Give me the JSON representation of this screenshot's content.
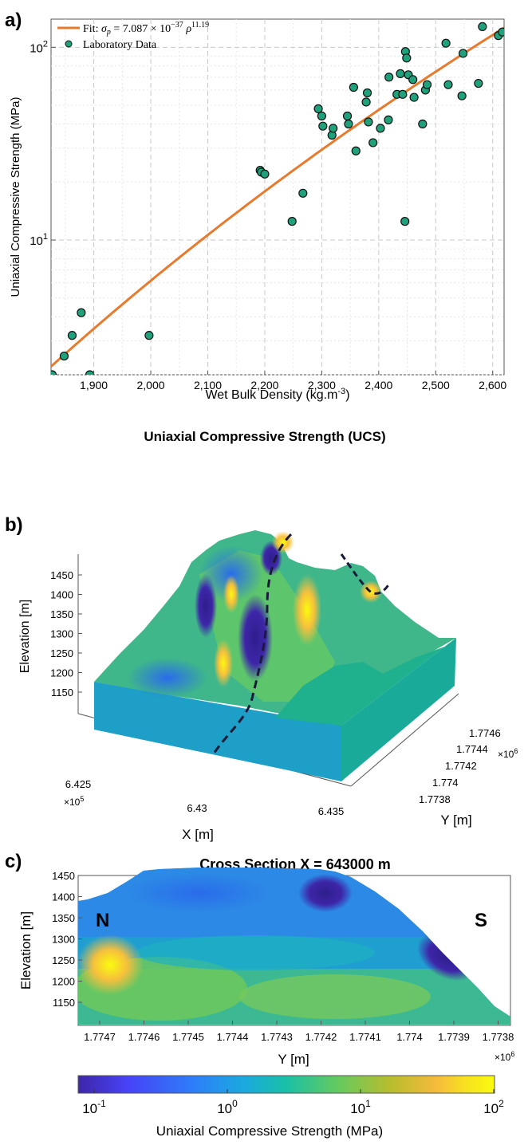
{
  "panel_labels": {
    "a": "a)",
    "b": "b)",
    "c": "c)"
  },
  "chart_data": [
    {
      "type": "scatter",
      "panel": "a",
      "xlabel_main": "Wet Bulk Density (kg.m",
      "xlabel_exp": "-3",
      "xlabel_close": ")",
      "ylabel": "Uniaxial Compressive Strength (MPa)",
      "xlim": [
        1825,
        2620
      ],
      "ylim": [
        2.0,
        140
      ],
      "yscale": "log",
      "grid": true,
      "legend_placement": "top-left",
      "xticks": [
        1900,
        2000,
        2100,
        2200,
        2300,
        2400,
        2500,
        2600
      ],
      "xtick_labels": [
        "1,900",
        "2,000",
        "2,100",
        "2,200",
        "2,300",
        "2,400",
        "2,500",
        "2,600"
      ],
      "yticks": [
        {
          "value": 10,
          "base": "10",
          "exp": "1"
        },
        {
          "value": 100,
          "base": "10",
          "exp": "2"
        }
      ],
      "fit": {
        "legend_prefix": "Fit:",
        "legend_sigma": "σ",
        "legend_sub": "p",
        "legend_eq": "= 7.087 × 10",
        "legend_exp1": "−37",
        "legend_rho": "ρ",
        "legend_exp2": "11.19",
        "coefficient": 7.087e-37,
        "exponent": 11.19,
        "color": "#E87A2E"
      },
      "series": [
        {
          "name": "Laboratory Data",
          "color": "#1FA27C",
          "points": [
            [
              1827,
              2.0
            ],
            [
              1848,
              2.5
            ],
            [
              1862,
              3.2
            ],
            [
              1878,
              4.2
            ],
            [
              1893,
              2.0
            ],
            [
              1997,
              3.2
            ],
            [
              2192,
              23
            ],
            [
              2194,
              22.5
            ],
            [
              2200,
              22
            ],
            [
              2248,
              12.5
            ],
            [
              2267,
              17.5
            ],
            [
              2294,
              48
            ],
            [
              2300,
              44
            ],
            [
              2302,
              39
            ],
            [
              2318,
              35
            ],
            [
              2320,
              38
            ],
            [
              2345,
              44
            ],
            [
              2347,
              40
            ],
            [
              2356,
              62
            ],
            [
              2360,
              29
            ],
            [
              2378,
              52
            ],
            [
              2380,
              58
            ],
            [
              2382,
              41
            ],
            [
              2390,
              32
            ],
            [
              2403,
              38
            ],
            [
              2417,
              42
            ],
            [
              2418,
              70
            ],
            [
              2432,
              57
            ],
            [
              2438,
              73
            ],
            [
              2442,
              57
            ],
            [
              2446,
              12.5
            ],
            [
              2447,
              95
            ],
            [
              2449,
              88
            ],
            [
              2452,
              72
            ],
            [
              2460,
              68
            ],
            [
              2462,
              55
            ],
            [
              2477,
              40
            ],
            [
              2482,
              60
            ],
            [
              2485,
              64
            ],
            [
              2518,
              105
            ],
            [
              2522,
              64
            ],
            [
              2546,
              56
            ],
            [
              2548,
              93
            ],
            [
              2575,
              65
            ],
            [
              2582,
              128
            ],
            [
              2610,
              115
            ],
            [
              2617,
              120
            ]
          ]
        }
      ]
    },
    {
      "type": "3d-surface",
      "panel": "b",
      "zlabel": "Elevation [m]",
      "xlabel": "X [m]",
      "ylabel": "Y [m]",
      "zticks": [
        "1450",
        "1400",
        "1350",
        "1300",
        "1250",
        "1200",
        "1150"
      ],
      "xticks": [
        "6.425",
        "6.43",
        "6.435"
      ],
      "x_multiplier": {
        "base": "×10",
        "exp": "5"
      },
      "yticks": [
        "1.7746",
        "1.7744",
        "1.7742",
        "1.774",
        "1.7738"
      ],
      "y_multiplier": {
        "base": "×10",
        "exp": "6"
      }
    },
    {
      "type": "heatmap",
      "panel": "c",
      "title": "Cross Section X = 643000 m",
      "ylabel": "Elevation [m]",
      "xlabel": "Y [m]",
      "ylim": [
        1140,
        1450
      ],
      "yticks": [
        "1450",
        "1400",
        "1350",
        "1300",
        "1250",
        "1200",
        "1150"
      ],
      "xticks": [
        "1.7747",
        "1.7746",
        "1.7745",
        "1.7744",
        "1.7743",
        "1.7742",
        "1.7741",
        "1.774",
        "1.7739",
        "1.7738"
      ],
      "x_multiplier": {
        "base": "×10",
        "exp": "6"
      },
      "annotations": {
        "north": "N",
        "south": "S"
      }
    }
  ],
  "title_ucs": "Uniaxial Compressive Strength (UCS)",
  "colorbar": {
    "label": "Uniaxial Compressive Strength (MPa)",
    "scale": "log",
    "ticks": [
      {
        "base": "10",
        "exp": "-1"
      },
      {
        "base": "10",
        "exp": "0"
      },
      {
        "base": "10",
        "exp": "1"
      },
      {
        "base": "10",
        "exp": "2"
      }
    ],
    "colormap": [
      "#3E26A8",
      "#4743F8",
      "#2D7FF9",
      "#1AAADE",
      "#1AC0A6",
      "#62CA60",
      "#B7BD2E",
      "#F6BA3C",
      "#F8E11F",
      "#F9FB0E"
    ]
  }
}
